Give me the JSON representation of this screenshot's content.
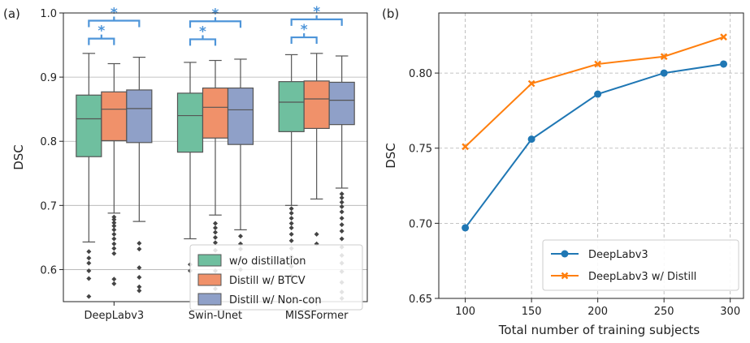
{
  "chart_data": [
    {
      "panel_label": "(a)",
      "type": "box",
      "ylabel": "DSC",
      "ylim": [
        0.55,
        1.0
      ],
      "yticks": [
        "0.6",
        "0.7",
        "0.8",
        "0.9",
        "1.0"
      ],
      "ytick_values": [
        0.6,
        0.7,
        0.8,
        0.9,
        1.0
      ],
      "grid": "horizontal",
      "categories": [
        "DeepLabv3",
        "Swin-Unet",
        "MISSFormer"
      ],
      "series": [
        {
          "name": "w/o distillation",
          "color": "#6fbf9f"
        },
        {
          "name": "Distill w/ BTCV",
          "color": "#f0916a"
        },
        {
          "name": "Distill w/ Non-con",
          "color": "#8fa0c8"
        }
      ],
      "boxes": [
        [
          {
            "whislo": 0.643,
            "q1": 0.776,
            "med": 0.835,
            "q3": 0.872,
            "whishi": 0.937,
            "fliers": [
              0.628,
              0.618,
              0.61,
              0.598,
              0.586,
              0.558
            ]
          },
          {
            "whislo": 0.688,
            "q1": 0.801,
            "med": 0.85,
            "q3": 0.877,
            "whishi": 0.921,
            "fliers": [
              0.682,
              0.678,
              0.673,
              0.668,
              0.662,
              0.655,
              0.648,
              0.64,
              0.633,
              0.625,
              0.585,
              0.578
            ]
          },
          {
            "whislo": 0.675,
            "q1": 0.798,
            "med": 0.851,
            "q3": 0.88,
            "whishi": 0.931,
            "fliers": [
              0.641,
              0.632,
              0.603,
              0.588,
              0.573,
              0.567
            ]
          }
        ],
        [
          {
            "whislo": 0.648,
            "q1": 0.783,
            "med": 0.84,
            "q3": 0.875,
            "whishi": 0.923,
            "fliers": [
              0.608,
              0.598
            ]
          },
          {
            "whislo": 0.685,
            "q1": 0.805,
            "med": 0.853,
            "q3": 0.883,
            "whishi": 0.926,
            "fliers": [
              0.672,
              0.665,
              0.658,
              0.65,
              0.642,
              0.63,
              0.62,
              0.61,
              0.598,
              0.585,
              0.57,
              0.56
            ]
          },
          {
            "whislo": 0.662,
            "q1": 0.795,
            "med": 0.849,
            "q3": 0.883,
            "whishi": 0.928,
            "fliers": [
              0.652,
              0.64,
              0.632,
              0.615,
              0.6,
              0.58
            ]
          }
        ],
        [
          {
            "whislo": 0.7,
            "q1": 0.815,
            "med": 0.861,
            "q3": 0.893,
            "whishi": 0.935,
            "fliers": [
              0.695,
              0.688,
              0.68,
              0.672,
              0.665,
              0.655,
              0.645,
              0.633,
              0.62,
              0.605,
              0.59
            ]
          },
          {
            "whislo": 0.71,
            "q1": 0.82,
            "med": 0.866,
            "q3": 0.894,
            "whishi": 0.937,
            "fliers": [
              0.655,
              0.64
            ]
          },
          {
            "whislo": 0.727,
            "q1": 0.826,
            "med": 0.864,
            "q3": 0.892,
            "whishi": 0.933,
            "fliers": [
              0.718,
              0.712,
              0.705,
              0.698,
              0.69,
              0.68,
              0.67,
              0.66,
              0.648,
              0.635,
              0.622,
              0.61,
              0.597,
              0.58,
              0.565,
              0.555
            ]
          }
        ]
      ],
      "significance": [
        {
          "group": 0,
          "from": 0,
          "to": 1,
          "label": "*",
          "level": 0.96
        },
        {
          "group": 0,
          "from": 0,
          "to": 2,
          "label": "*",
          "level": 0.988
        },
        {
          "group": 1,
          "from": 0,
          "to": 1,
          "label": "*",
          "level": 0.959
        },
        {
          "group": 1,
          "from": 0,
          "to": 2,
          "label": "*",
          "level": 0.987
        },
        {
          "group": 2,
          "from": 0,
          "to": 1,
          "label": "*",
          "level": 0.962
        },
        {
          "group": 2,
          "from": 0,
          "to": 2,
          "label": "*",
          "level": 0.99
        }
      ],
      "significance_color": "#4e95d9",
      "legend_position": "lower-right"
    },
    {
      "panel_label": "(b)",
      "type": "line",
      "xlabel": "Total number of training subjects",
      "ylabel": "DSC",
      "xlim": [
        80,
        310
      ],
      "ylim": [
        0.65,
        0.84
      ],
      "xticks": [
        "100",
        "150",
        "200",
        "250",
        "300"
      ],
      "xtick_values": [
        100,
        150,
        200,
        250,
        300
      ],
      "yticks": [
        "0.65",
        "0.70",
        "0.75",
        "0.80"
      ],
      "ytick_values": [
        0.65,
        0.7,
        0.75,
        0.8
      ],
      "grid": "dashed",
      "x": [
        100,
        150,
        200,
        250,
        295
      ],
      "series": [
        {
          "name": "DeepLabv3",
          "color": "#1f77b4",
          "marker": "circle",
          "values": [
            0.697,
            0.756,
            0.786,
            0.8,
            0.806
          ]
        },
        {
          "name": "DeepLabv3 w/ Distill",
          "color": "#ff7f0e",
          "marker": "x",
          "values": [
            0.751,
            0.793,
            0.806,
            0.811,
            0.824
          ]
        }
      ],
      "legend_position": "lower-right"
    }
  ]
}
